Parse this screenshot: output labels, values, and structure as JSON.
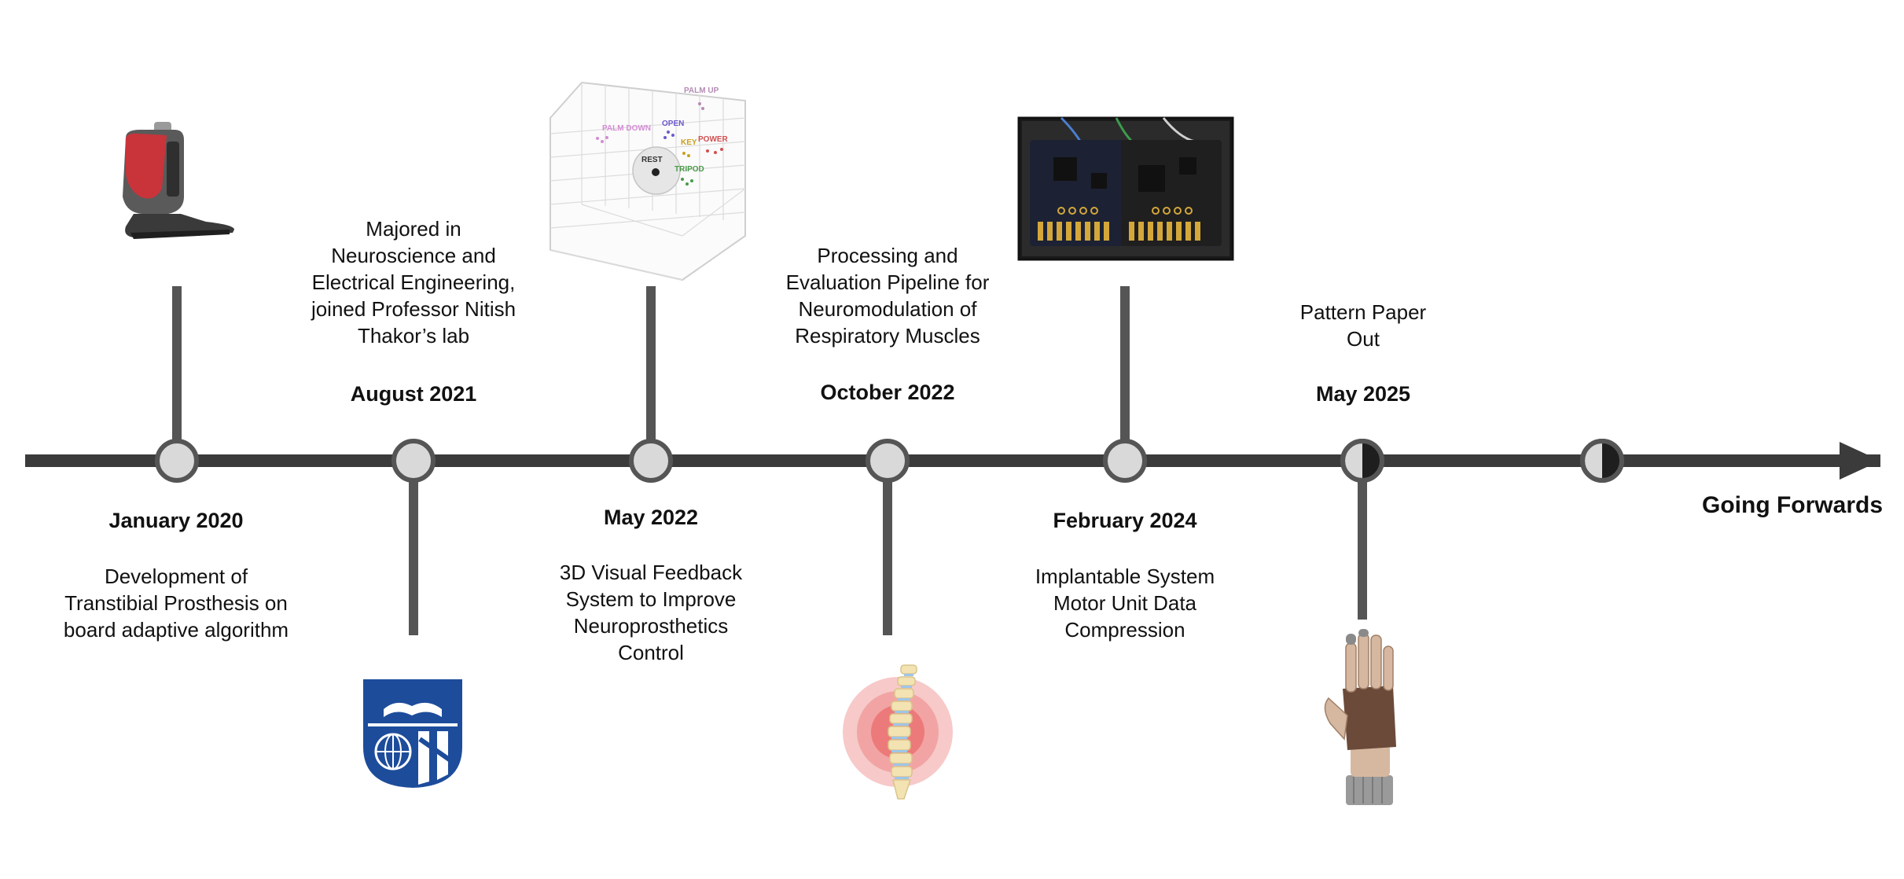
{
  "timeline": {
    "end_label": "Going Forwards",
    "events": [
      {
        "date": "January 2020",
        "description": [
          "Development of",
          "Transtibial Prosthesis on",
          "board adaptive algorithm"
        ],
        "icon": "prosthetic-foot-icon"
      },
      {
        "date": "August 2021",
        "description": [
          "Majored in",
          "Neuroscience and",
          "Electrical Engineering,",
          "joined Professor Nitish",
          "Thakor’s lab"
        ],
        "icon": "university-shield-logo"
      },
      {
        "date": "May 2022",
        "description": [
          "3D Visual Feedback",
          "System to Improve",
          "Neuroprosthetics",
          "Control"
        ],
        "icon": "3d-scatter-plot-image",
        "plot_labels": [
          "PALM UP",
          "PALM DOWN",
          "OPEN",
          "KEY",
          "POWER",
          "REST",
          "TRIPOD"
        ]
      },
      {
        "date": "October 2022",
        "description": [
          "Processing and",
          "Evaluation Pipeline for",
          "Neuromodulation of",
          "Respiratory Muscles"
        ],
        "icon": "spine-icon"
      },
      {
        "date": "February 2024",
        "description": [
          "Implantable System",
          "Motor Unit Data",
          "Compression"
        ],
        "icon": "circuit-board-photo"
      },
      {
        "date": "May 2025",
        "description": [
          "Pattern Paper",
          "Out"
        ],
        "icon": "prosthetic-hand-icon"
      }
    ]
  },
  "colors": {
    "line": "#3b3b3b",
    "stem": "#555555",
    "node_fill": "#d9d9d9",
    "node_stroke": "#555555",
    "half_dark": "#1e1e1e",
    "shield_blue": "#1d4c9b",
    "spine_red": "#e14a4a"
  }
}
